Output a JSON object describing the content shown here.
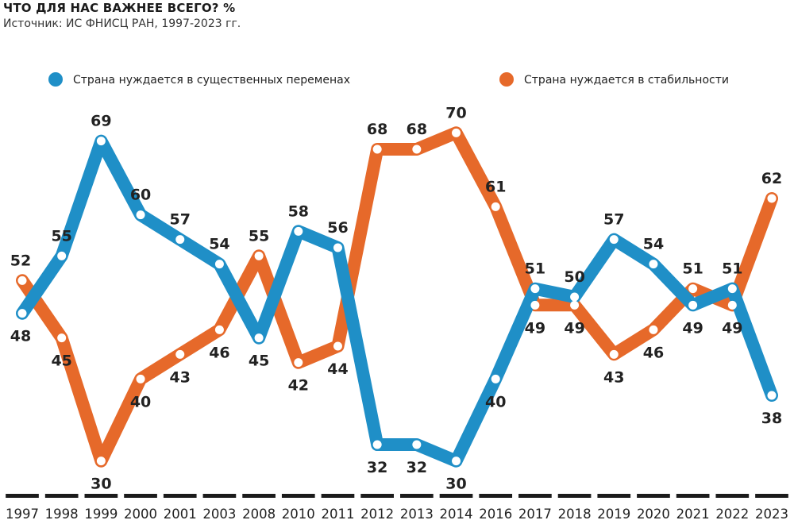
{
  "header": {
    "title": "ЧТО ДЛЯ НАС ВАЖНЕЕ ВСЕГО? %",
    "subtitle": "Источник: ИС ФНИСЦ РАН, 1997-2023 гг."
  },
  "colors": {
    "changes": "#1f8fc7",
    "stability": "#e6692a",
    "text": "#222222",
    "axis_segment": "#1b1b1b"
  },
  "chart_data": {
    "type": "line",
    "title": "ЧТО ДЛЯ НАС ВАЖНЕЕ ВСЕГО? %",
    "categories": [
      "1997",
      "1998",
      "1999",
      "2000",
      "2001",
      "2003",
      "2008",
      "2010",
      "2011",
      "2012",
      "2013",
      "2014",
      "2016",
      "2017",
      "2018",
      "2019",
      "2020",
      "2021",
      "2022",
      "2023"
    ],
    "series": [
      {
        "name": "Страна нуждается в существенных переменах",
        "color": "#1f8fc7",
        "values": [
          48,
          55,
          69,
          60,
          57,
          54,
          45,
          58,
          56,
          32,
          32,
          30,
          40,
          51,
          50,
          57,
          54,
          49,
          51,
          38
        ]
      },
      {
        "name": "Страна нуждается в стабильности",
        "color": "#e6692a",
        "values": [
          52,
          45,
          30,
          40,
          43,
          46,
          55,
          42,
          44,
          68,
          68,
          70,
          61,
          49,
          49,
          43,
          46,
          51,
          49,
          62
        ]
      }
    ],
    "legend": "top",
    "grid": false,
    "ylim": [
      26,
      74
    ]
  }
}
